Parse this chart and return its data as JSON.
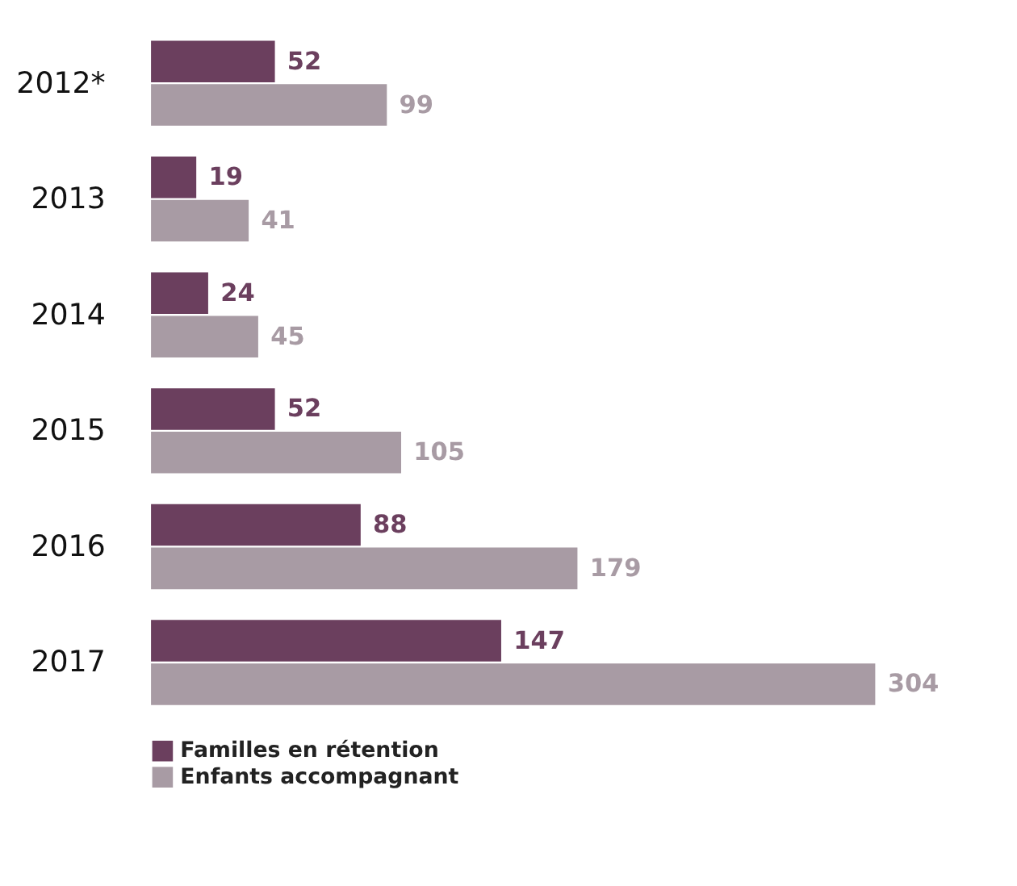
{
  "chart_data": {
    "type": "bar",
    "orientation": "horizontal",
    "categories": [
      "2012*",
      "2013",
      "2014",
      "2015",
      "2016",
      "2017"
    ],
    "series": [
      {
        "name": "Familles en rétention",
        "color": "#6b3f5e",
        "values": [
          52,
          19,
          24,
          52,
          88,
          147
        ]
      },
      {
        "name": "Enfants accompagnant",
        "color": "#a89ba4",
        "values": [
          99,
          41,
          45,
          105,
          179,
          304
        ]
      }
    ],
    "data_labels": true,
    "legend": "bottom left",
    "grid": false,
    "tick_labels": "y"
  }
}
